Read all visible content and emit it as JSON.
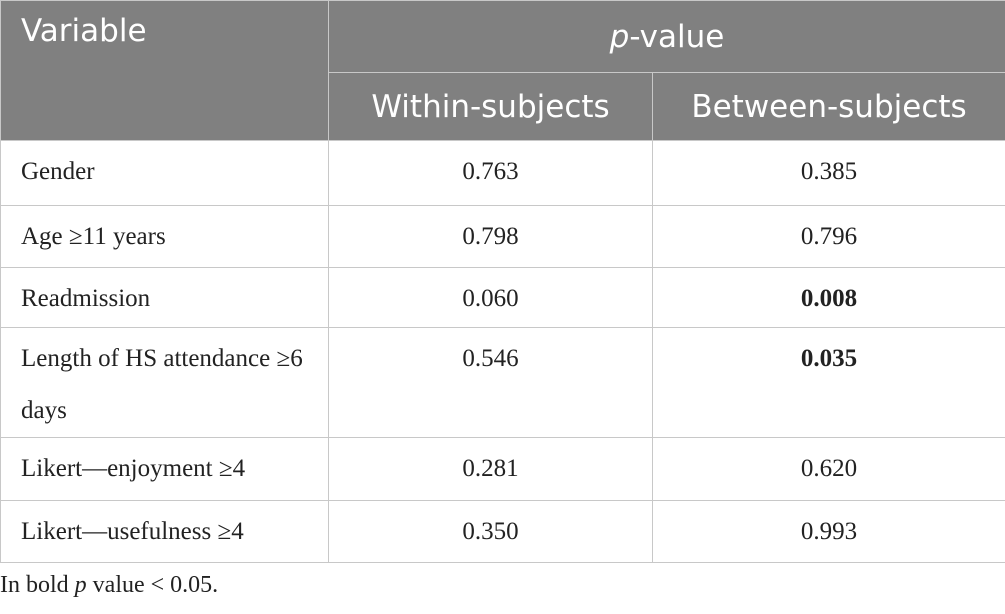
{
  "header": {
    "variable": "Variable",
    "pvalue": [
      "p",
      "-value"
    ],
    "within": "Within-subjects",
    "between": "Between-subjects"
  },
  "table": {
    "rows": [
      {
        "variable": "Gender",
        "within": "0.763",
        "between": "0.385",
        "bold_between": false
      },
      {
        "variable": "Age ≥11 years",
        "within": "0.798",
        "between": "0.796",
        "bold_between": false
      },
      {
        "variable": "Readmission",
        "within": "0.060",
        "between": "0.008",
        "bold_between": true
      },
      {
        "variable": "Length of HS attendance ≥6 days",
        "within": "0.546",
        "between": "0.035",
        "bold_between": true
      },
      {
        "variable": "Likert—enjoyment ≥4",
        "within": "0.281",
        "between": "0.620",
        "bold_between": false
      },
      {
        "variable": "Likert—usefulness ≥4",
        "within": "0.350",
        "between": "0.993",
        "bold_between": false
      }
    ]
  },
  "footnote": [
    "In bold ",
    "p",
    " value < 0.05."
  ]
}
